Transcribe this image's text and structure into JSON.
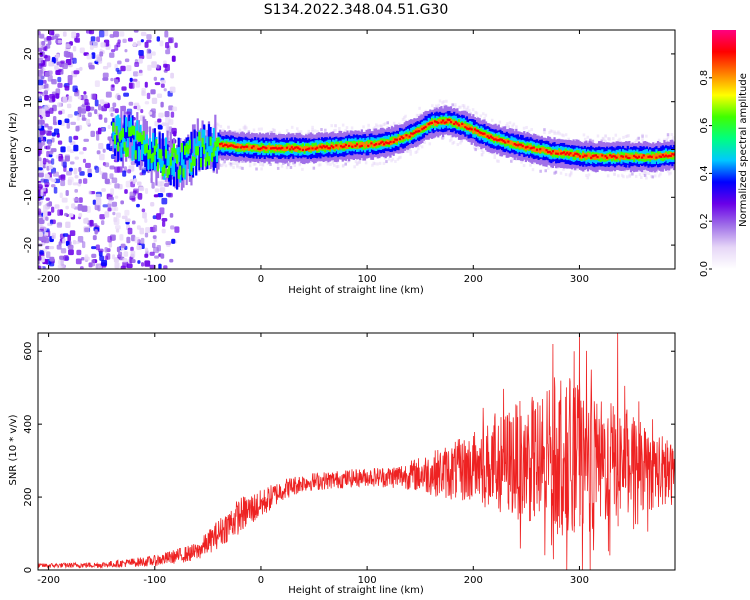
{
  "figure_title": "S134.2022.348.04.51.G30",
  "chart_data": [
    {
      "type": "heatmap",
      "title": "",
      "xlabel": "Height of straight line (km)",
      "ylabel": "Frequency (Hz)",
      "xlim": [
        -210,
        390
      ],
      "ylim": [
        -25,
        25
      ],
      "xticks": [
        -200,
        -100,
        0,
        100,
        200,
        300
      ],
      "yticks": [
        -20,
        -10,
        0,
        10,
        20
      ],
      "colorbar": {
        "label": "Normalized spectral amplitude",
        "range": [
          0,
          1
        ],
        "ticks": [
          "0.0",
          "0.2",
          "0.4",
          "0.6",
          "0.8"
        ],
        "colormap": [
          "#ffffff",
          "#e6d6f7",
          "#a070e8",
          "#6a00e8",
          "#0000ff",
          "#00c8ff",
          "#00ff80",
          "#40ff00",
          "#ffff00",
          "#ff8000",
          "#ff0000",
          "#ff0080"
        ]
      },
      "ridge": {
        "x": [
          -140,
          -120,
          -100,
          -80,
          -60,
          -40,
          -20,
          0,
          20,
          40,
          60,
          80,
          100,
          120,
          140,
          160,
          175,
          190,
          210,
          230,
          250,
          270,
          290,
          310,
          330,
          350,
          370,
          385
        ],
        "freq": [
          3,
          2,
          -1,
          -3,
          0,
          1,
          0.5,
          0.3,
          0.3,
          0.2,
          0.5,
          0.8,
          1,
          1.5,
          3,
          5.5,
          6,
          5,
          3,
          1.5,
          0.5,
          -0.5,
          -1,
          -1.5,
          -1.5,
          -1.5,
          -1.5,
          -1.2
        ]
      },
      "grid": false,
      "legend": "none"
    },
    {
      "type": "line",
      "title": "",
      "xlabel": "Height of straight line (km)",
      "ylabel": "SNR (10 * v/v)",
      "xlim": [
        -210,
        390
      ],
      "ylim": [
        0,
        650
      ],
      "xticks": [
        -200,
        -100,
        0,
        100,
        200,
        300
      ],
      "yticks": [
        0,
        200,
        400,
        600
      ],
      "color": "#ee2222",
      "envelope": {
        "x": [
          -210,
          -150,
          -100,
          -60,
          -40,
          -20,
          0,
          20,
          40,
          60,
          80,
          100,
          120,
          140,
          160,
          180,
          200,
          220,
          240,
          260,
          280,
          300,
          320,
          340,
          360,
          380,
          390
        ],
        "mean": [
          12,
          14,
          25,
          50,
          100,
          150,
          180,
          220,
          240,
          245,
          250,
          255,
          255,
          260,
          265,
          270,
          280,
          290,
          300,
          300,
          310,
          300,
          290,
          300,
          280,
          270,
          260
        ],
        "amplitude": [
          6,
          8,
          15,
          25,
          40,
          50,
          40,
          30,
          25,
          25,
          25,
          25,
          30,
          40,
          60,
          80,
          100,
          130,
          160,
          180,
          200,
          200,
          180,
          150,
          120,
          100,
          80
        ]
      },
      "peaks": [
        {
          "x": 275,
          "y": 620
        },
        {
          "x": 300,
          "y": 650
        },
        {
          "x": 336,
          "y": 650
        },
        {
          "x": 295,
          "y": 600
        }
      ],
      "grid": false,
      "legend": "none"
    }
  ]
}
